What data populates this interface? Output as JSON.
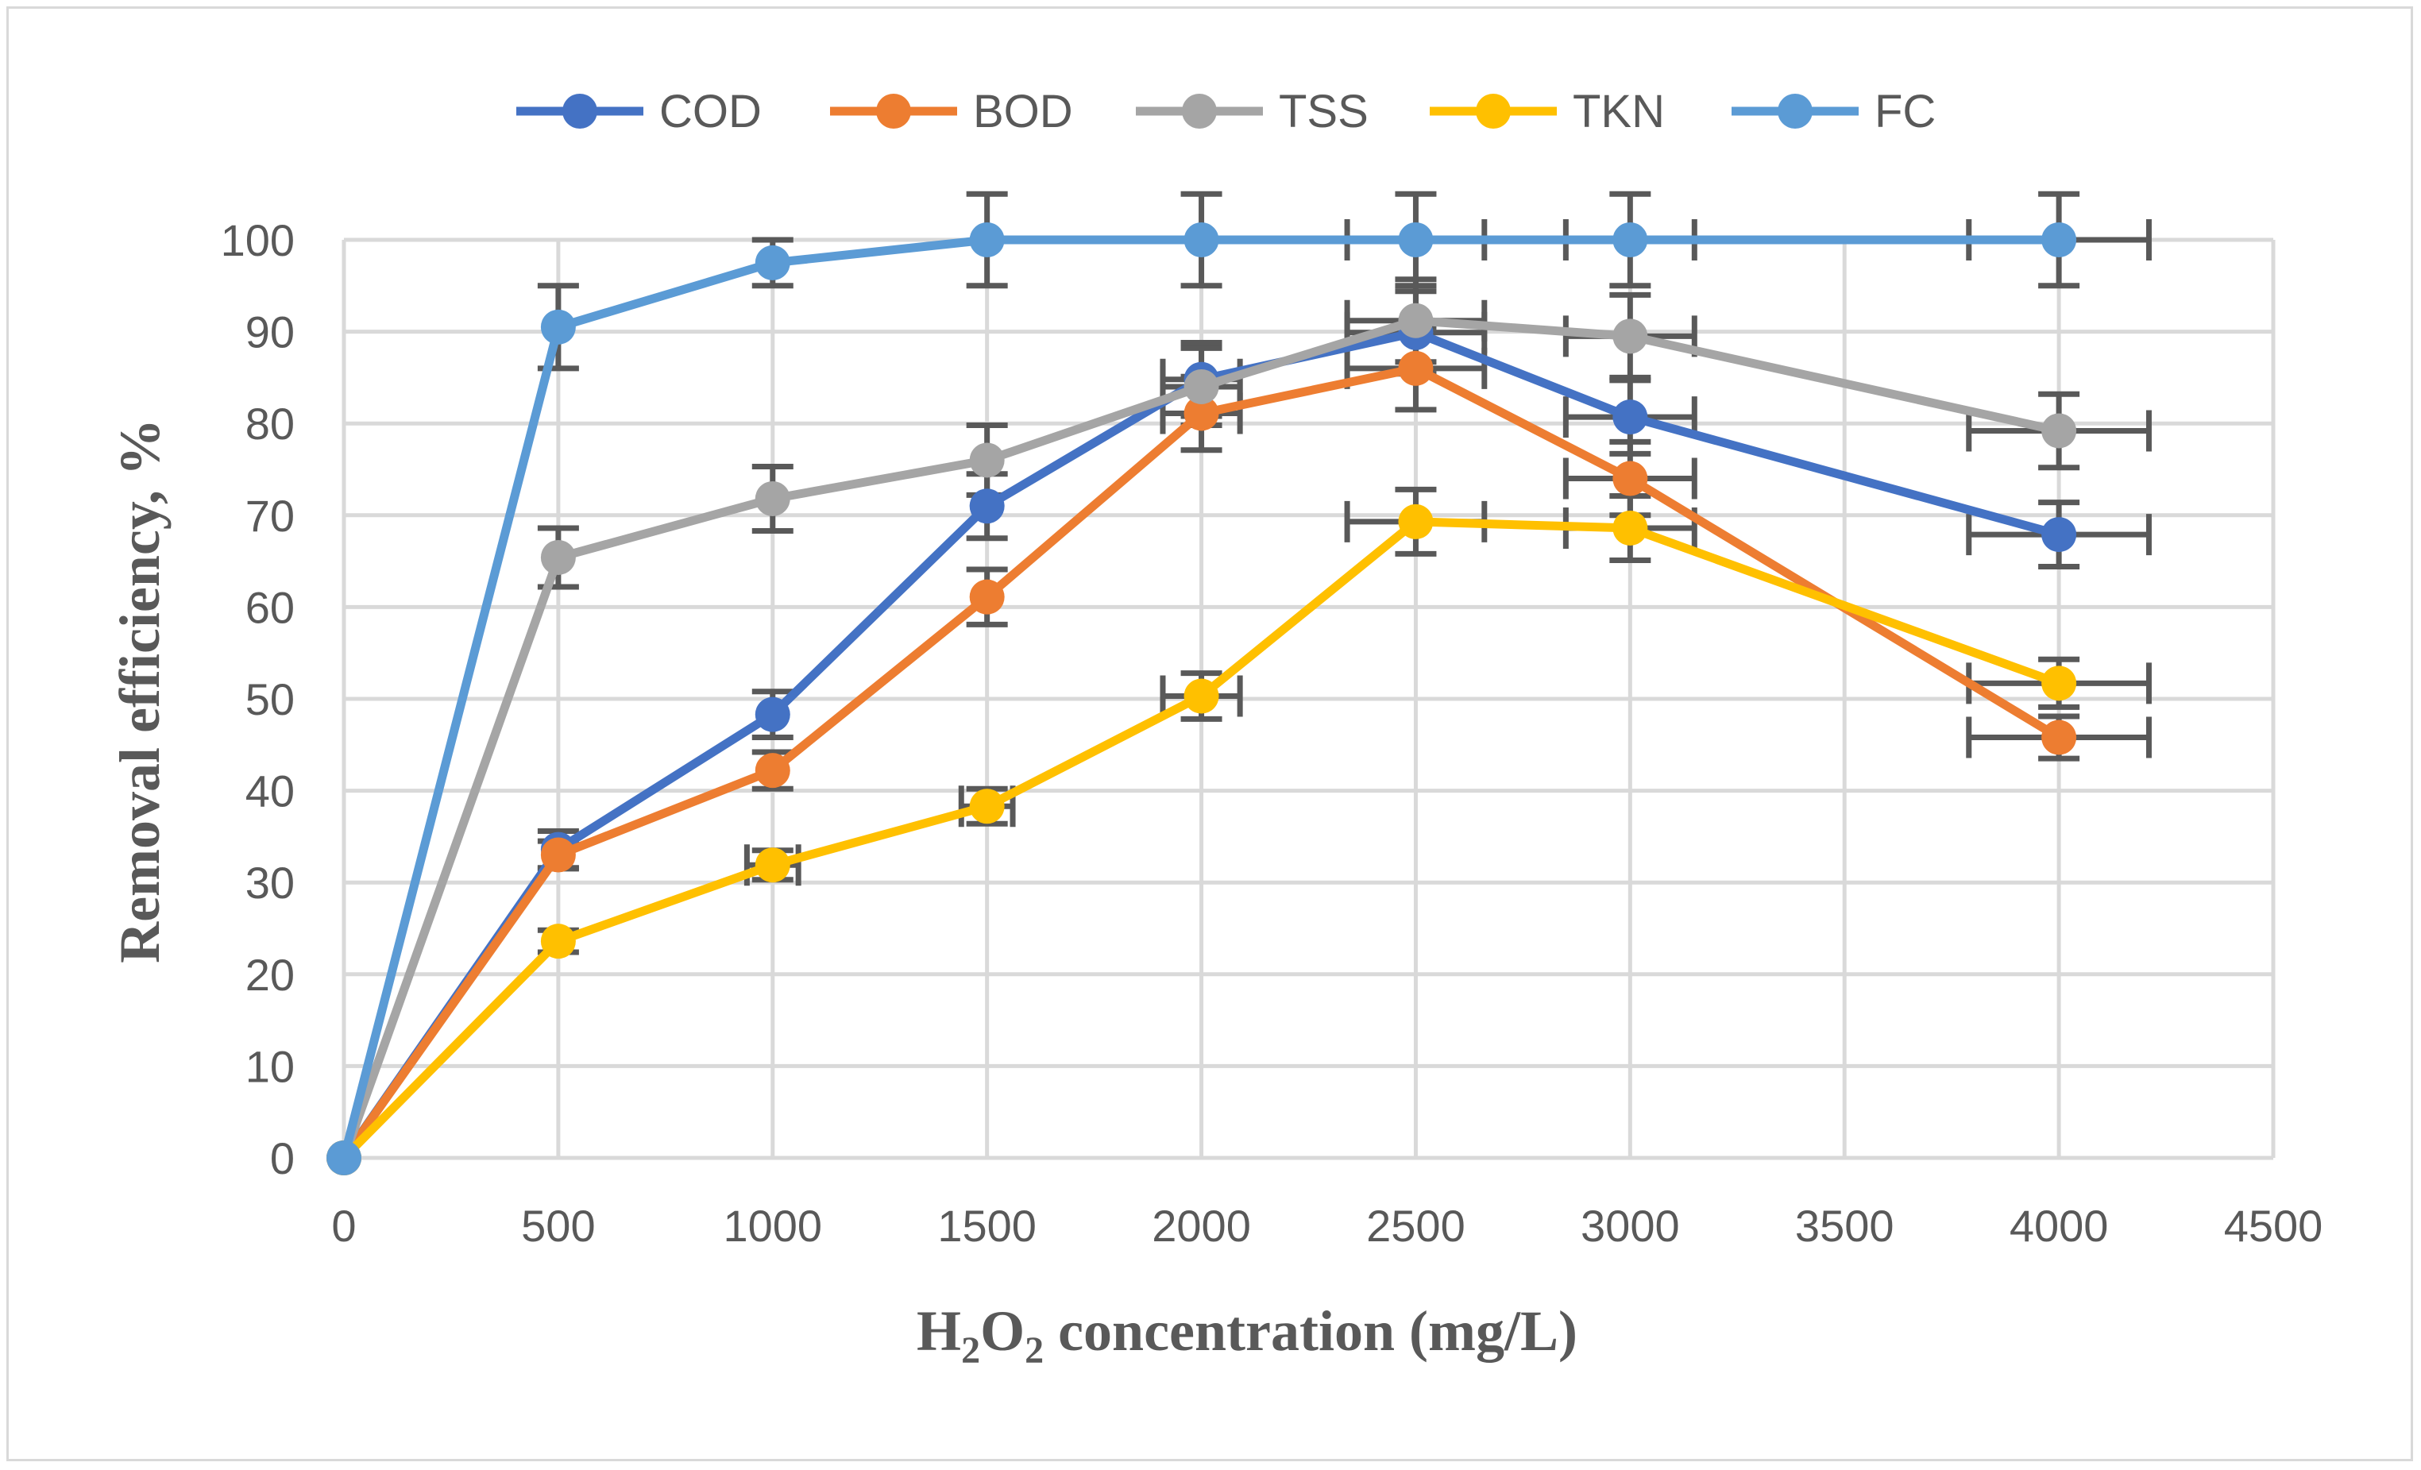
{
  "chart_data": {
    "type": "line",
    "title": "",
    "xlabel": "H2O2 concentration (mg/L)",
    "xlabel_parts": [
      "H",
      "2",
      "O",
      "2",
      " concentration (mg/L)"
    ],
    "ylabel": "Removal efficiency, %",
    "xlim": [
      0,
      4500
    ],
    "ylim": [
      0,
      100
    ],
    "xticks": [
      0,
      500,
      1000,
      1500,
      2000,
      2500,
      3000,
      3500,
      4000,
      4500
    ],
    "yticks": [
      0,
      10,
      20,
      30,
      40,
      50,
      60,
      70,
      80,
      90,
      100
    ],
    "grid": true,
    "legend_position": "top",
    "x": [
      0,
      500,
      1000,
      1500,
      2000,
      2500,
      3000,
      4000
    ],
    "series": [
      {
        "name": "COD",
        "color": "#4472c4",
        "values": [
          0,
          33.6,
          48.3,
          71.0,
          84.8,
          89.9,
          80.7,
          67.9
        ],
        "yerr": [
          0,
          2,
          2.5,
          3.5,
          4,
          4.5,
          4,
          3.5
        ],
        "xerr": [
          0,
          0,
          0,
          0,
          90,
          160,
          150,
          210
        ]
      },
      {
        "name": "BOD",
        "color": "#ed7d31",
        "values": [
          0,
          33.0,
          42.2,
          61.1,
          81.1,
          86.0,
          74.0,
          45.8
        ],
        "yerr": [
          0,
          1.5,
          2,
          3,
          4,
          4.5,
          4,
          2.3
        ],
        "xerr": [
          0,
          0,
          0,
          0,
          90,
          160,
          150,
          210
        ]
      },
      {
        "name": "TSS",
        "color": "#a5a5a5",
        "values": [
          0,
          65.4,
          71.8,
          76.0,
          84.0,
          91.2,
          89.5,
          79.2
        ],
        "yerr": [
          0,
          3.2,
          3.5,
          3.8,
          4.2,
          4.5,
          4.5,
          4
        ],
        "xerr": [
          0,
          0,
          0,
          0,
          90,
          160,
          150,
          210
        ]
      },
      {
        "name": "TKN",
        "color": "#ffc000",
        "values": [
          0,
          23.6,
          31.9,
          38.3,
          50.3,
          69.3,
          68.6,
          51.7
        ],
        "yerr": [
          0,
          1.2,
          1.6,
          1.9,
          2.5,
          3.5,
          3.5,
          2.6
        ],
        "xerr": [
          0,
          0,
          60,
          60,
          90,
          160,
          150,
          210
        ]
      },
      {
        "name": "FC",
        "color": "#5b9bd5",
        "values": [
          0,
          90.5,
          97.5,
          100,
          100,
          100,
          100,
          100
        ],
        "yerr": [
          0,
          4.5,
          2.5,
          5,
          5,
          5,
          5,
          5
        ],
        "xerr": [
          0,
          0,
          0,
          0,
          0,
          160,
          150,
          210
        ]
      }
    ]
  }
}
